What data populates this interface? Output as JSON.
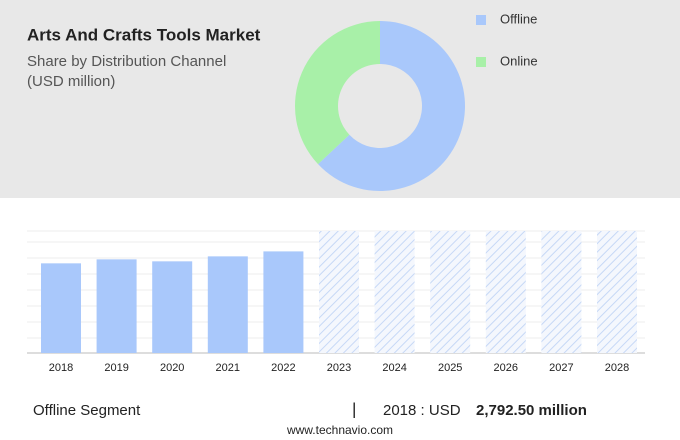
{
  "chart_data": [
    {
      "type": "donut",
      "title": "Arts And Crafts Tools Market",
      "subtitle": [
        "Share by Distribution Channel",
        "(USD million)"
      ],
      "categories": [
        "Offline",
        "Online"
      ],
      "values": [
        63,
        37
      ],
      "colors": [
        "#a9c8fb",
        "#a8f0a8"
      ]
    },
    {
      "type": "bar",
      "categories": [
        "2018",
        "2019",
        "2020",
        "2021",
        "2022",
        "2023",
        "2024",
        "2025",
        "2026",
        "2027",
        "2028"
      ],
      "values": [
        2792.5,
        2917,
        2855,
        3010,
        3165,
        null,
        null,
        null,
        null,
        null,
        null
      ],
      "color": "#a9c8fb",
      "ylim": [
        0,
        3800
      ],
      "footer": {
        "segment": "Offline Segment",
        "separator": "|",
        "year_label": "2018 : USD",
        "value_label": "2,792.50 million"
      },
      "source": "www.technavio.com"
    }
  ]
}
